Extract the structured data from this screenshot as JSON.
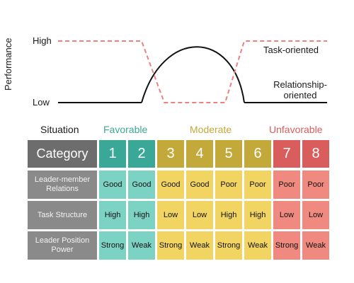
{
  "graph": {
    "y_axis_label": "Performance",
    "y_high_label": "High",
    "y_low_label": "Low",
    "series": [
      {
        "name": "Task-oriented",
        "style": "dashed",
        "color": "#f08080"
      },
      {
        "name": "Relationship-oriented",
        "style": "solid",
        "color": "#111111"
      }
    ]
  },
  "header": {
    "situation_label": "Situation",
    "favorable_label": "Favorable",
    "moderate_label": "Moderate",
    "unfavorable_label": "Unfavorable"
  },
  "colors": {
    "favorable": "#3aa896",
    "favorable_light": "#7dd3c3",
    "moderate": "#c3a93a",
    "moderate_light": "#f2d463",
    "unfavorable": "#d95d5d",
    "unfavorable_light": "#f08a80",
    "row_header": "#8a8a8a",
    "category_header": "#6d6d6d"
  },
  "table": {
    "category_label": "Category",
    "columns": [
      "1",
      "2",
      "3",
      "4",
      "5",
      "6",
      "7",
      "8"
    ],
    "rows": [
      {
        "label": "Leader-member Relations",
        "values": [
          "Good",
          "Good",
          "Good",
          "Good",
          "Poor",
          "Poor",
          "Poor",
          "Poor"
        ]
      },
      {
        "label": "Task Structure",
        "values": [
          "High",
          "High",
          "Low",
          "Low",
          "High",
          "High",
          "Low",
          "Low"
        ]
      },
      {
        "label": "Leader Position Power",
        "values": [
          "Strong",
          "Weak",
          "Strong",
          "Weak",
          "Strong",
          "Weak",
          "Strong",
          "Weak"
        ]
      }
    ]
  }
}
